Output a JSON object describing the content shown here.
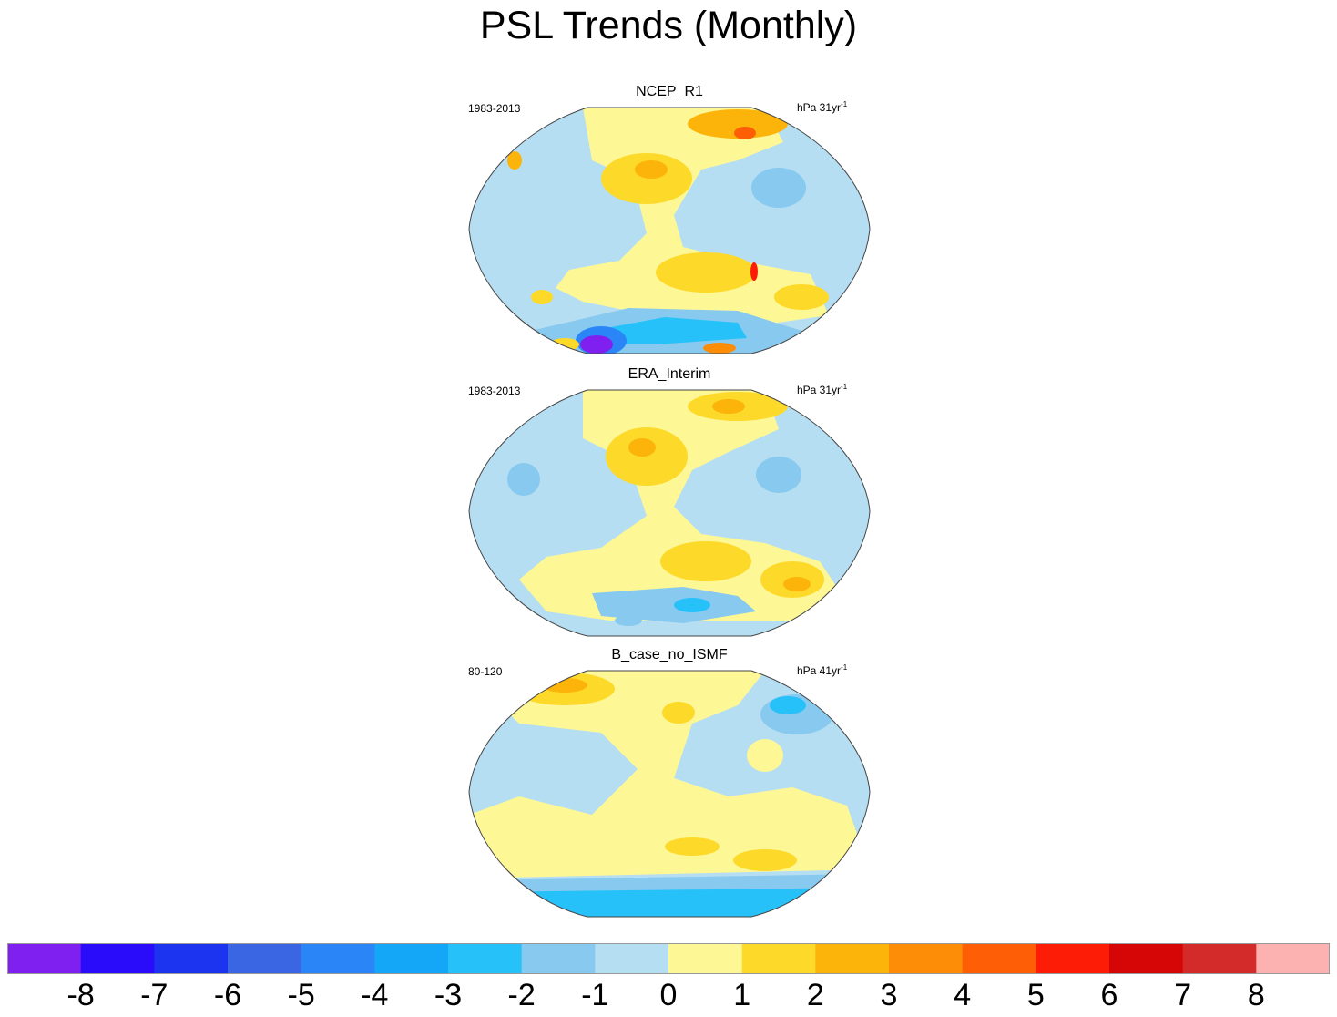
{
  "title": "PSL Trends (Monthly)",
  "panels": [
    {
      "title": "NCEP_R1",
      "period": "1983-2013",
      "units_prefix": "hPa 31yr",
      "units_exp": "-1"
    },
    {
      "title": "ERA_Interim",
      "period": "1983-2013",
      "units_prefix": "hPa 31yr",
      "units_exp": "-1"
    },
    {
      "title": "B_case_no_ISMF",
      "period": "80-120",
      "units_prefix": "hPa 41yr",
      "units_exp": "-1"
    }
  ],
  "colorbar": {
    "labels": [
      "-8",
      "-7",
      "-6",
      "-5",
      "-4",
      "-3",
      "-2",
      "-1",
      "0",
      "1",
      "2",
      "3",
      "4",
      "5",
      "6",
      "7",
      "8"
    ],
    "colors": [
      "#8020f0",
      "#2a0cfa",
      "#1c33f0",
      "#3b66e3",
      "#2a85f7",
      "#14a6f7",
      "#27c1fa",
      "#87c9ef",
      "#b5def2",
      "#fef796",
      "#fdd92a",
      "#fcb30a",
      "#fd8c06",
      "#fd5e06",
      "#fd1c06",
      "#d70606",
      "#d32a2a",
      "#fdb2b2"
    ]
  }
}
